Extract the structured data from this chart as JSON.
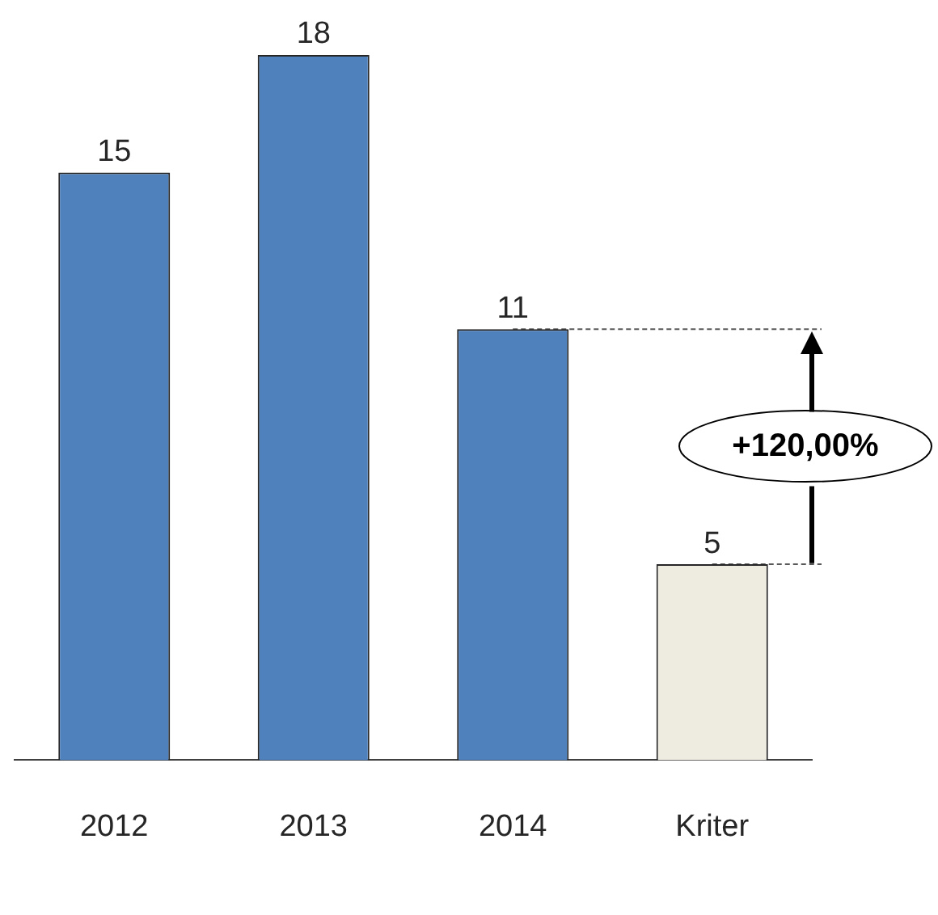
{
  "chart_data": {
    "type": "bar",
    "categories": [
      "2012",
      "2013",
      "2014",
      "Kriter"
    ],
    "values": [
      15,
      18,
      11,
      5
    ],
    "colors": [
      "#4f81bd",
      "#4f81bd",
      "#4f81bd",
      "#eeece1"
    ],
    "data_labels": true,
    "tick_labels": "x",
    "grid": false,
    "legend": false,
    "ref_lines": [
      {
        "axis": "y",
        "value": 11,
        "color": "#595959",
        "line_style": "dashed"
      },
      {
        "axis": "y",
        "value": 5,
        "color": "#595959",
        "line_style": "dashed"
      }
    ],
    "annotations": [
      "+120,00%"
    ]
  }
}
